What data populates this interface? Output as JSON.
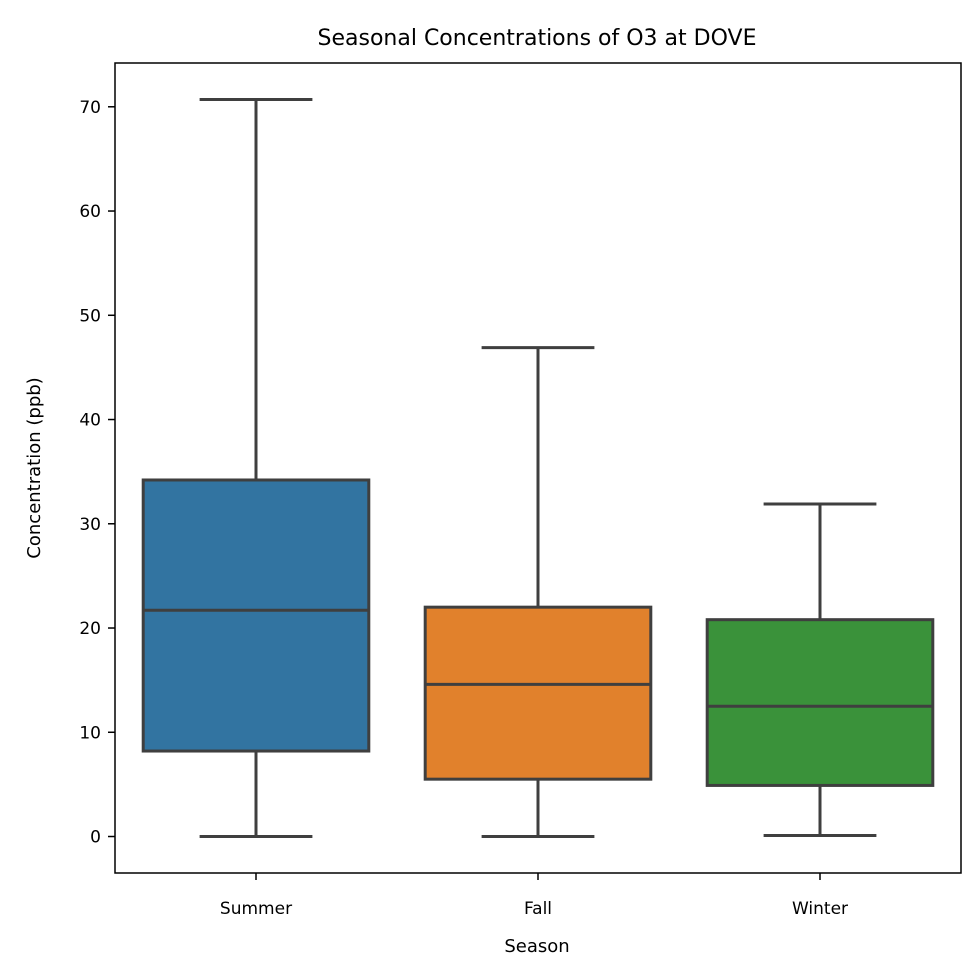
{
  "chart_data": {
    "type": "box",
    "title": "Seasonal Concentrations of O3 at DOVE",
    "xlabel": "Season",
    "ylabel": "Concentration (ppb)",
    "ylim": [
      -3.5,
      74.2
    ],
    "yticks": [
      0,
      10,
      20,
      30,
      40,
      50,
      60,
      70
    ],
    "grid": false,
    "categories": [
      "Summer",
      "Fall",
      "Winter"
    ],
    "boxes": [
      {
        "category": "Summer",
        "min": 0.0,
        "q1": 8.2,
        "median": 21.7,
        "q3": 34.2,
        "max": 70.7,
        "color": "#3274a1"
      },
      {
        "category": "Fall",
        "min": 0.0,
        "q1": 5.5,
        "median": 14.6,
        "q3": 22.0,
        "max": 46.9,
        "color": "#e1812c"
      },
      {
        "category": "Winter",
        "min": 0.1,
        "q1": 4.9,
        "median": 12.5,
        "q3": 20.8,
        "max": 31.9,
        "color": "#3a923a"
      }
    ],
    "line_color": "#3f3f3f"
  }
}
